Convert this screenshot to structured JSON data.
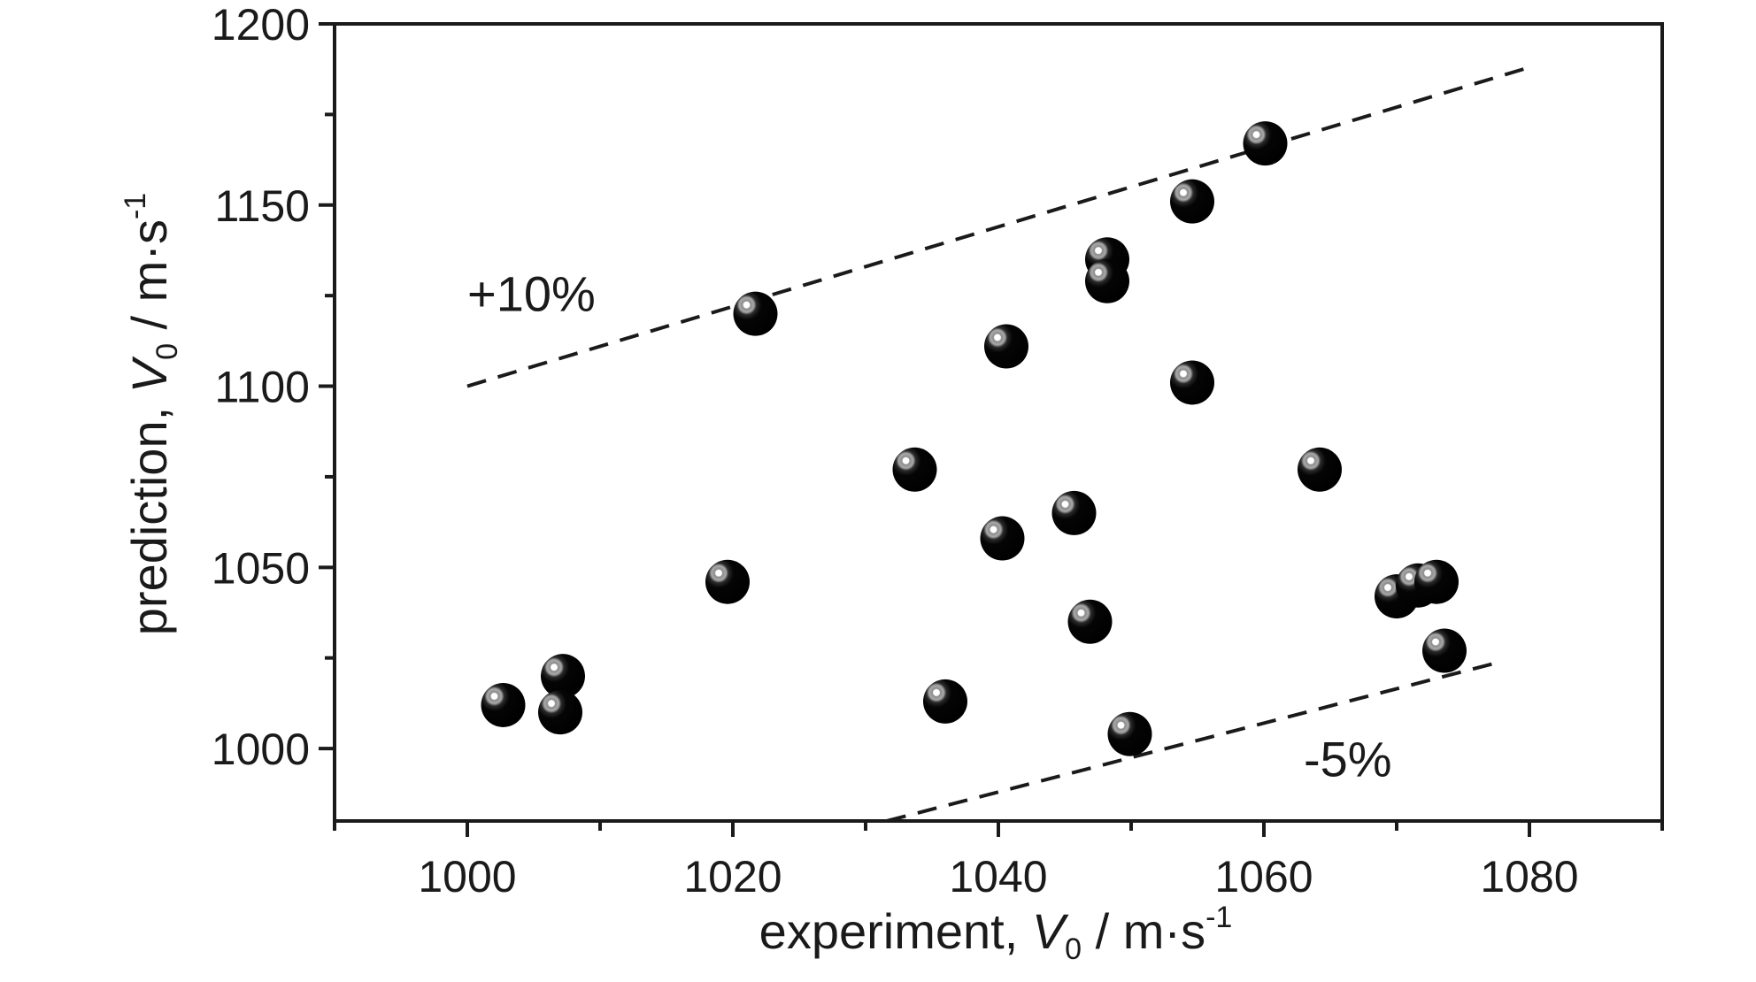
{
  "chart_data": {
    "type": "scatter",
    "xlabel": {
      "prefix": "experiment, ",
      "var": "V",
      "sub": "0",
      "unit": " / m·s",
      "sup": "-1"
    },
    "ylabel": {
      "prefix": "prediction, ",
      "var": "V",
      "sub": "0",
      "unit": " / m·s",
      "sup": "-1"
    },
    "xlim": [
      990,
      1090
    ],
    "ylim": [
      980,
      1200
    ],
    "xticks": [
      1000,
      1020,
      1040,
      1060,
      1080
    ],
    "xticks_minor": [
      990,
      1010,
      1030,
      1050,
      1070,
      1090
    ],
    "yticks": [
      1000,
      1050,
      1100,
      1150,
      1200
    ],
    "yticks_minor": [
      1025,
      1075,
      1125,
      1175
    ],
    "grid": false,
    "points": [
      {
        "x": 1002.7,
        "y": 1012
      },
      {
        "x": 1007.2,
        "y": 1020
      },
      {
        "x": 1007.0,
        "y": 1010
      },
      {
        "x": 1019.6,
        "y": 1046
      },
      {
        "x": 1021.7,
        "y": 1120
      },
      {
        "x": 1033.7,
        "y": 1077
      },
      {
        "x": 1036.0,
        "y": 1013
      },
      {
        "x": 1040.3,
        "y": 1058
      },
      {
        "x": 1040.6,
        "y": 1111
      },
      {
        "x": 1045.7,
        "y": 1065
      },
      {
        "x": 1046.9,
        "y": 1035
      },
      {
        "x": 1048.2,
        "y": 1135
      },
      {
        "x": 1048.2,
        "y": 1129
      },
      {
        "x": 1049.9,
        "y": 1004
      },
      {
        "x": 1054.6,
        "y": 1151
      },
      {
        "x": 1054.6,
        "y": 1101
      },
      {
        "x": 1060.1,
        "y": 1167
      },
      {
        "x": 1064.2,
        "y": 1077
      },
      {
        "x": 1070.0,
        "y": 1042
      },
      {
        "x": 1071.6,
        "y": 1045
      },
      {
        "x": 1073.0,
        "y": 1046
      },
      {
        "x": 1073.6,
        "y": 1027
      }
    ],
    "reference_lines": [
      {
        "label": "+10%",
        "factor": 1.1,
        "x_range": [
          1000,
          1080
        ]
      },
      {
        "label": "-5%",
        "factor": 0.95,
        "x_range": [
          1031.6,
          1078
        ]
      }
    ]
  }
}
